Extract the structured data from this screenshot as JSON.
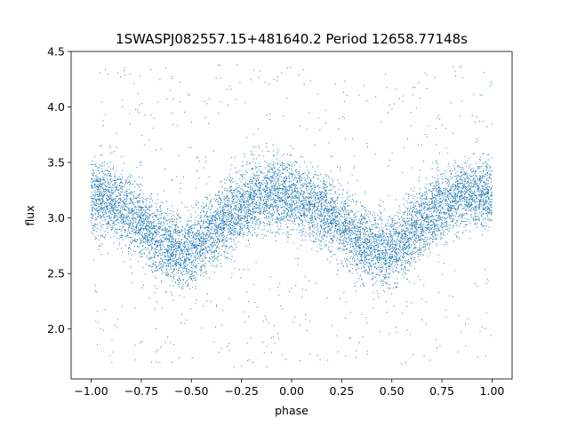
{
  "chart_data": {
    "type": "scatter",
    "title": "1SWASPJ082557.15+481640.2 Period 12658.77148s",
    "xlabel": "phase",
    "ylabel": "flux",
    "xlim": [
      -1.1,
      1.1
    ],
    "ylim": [
      1.55,
      4.5
    ],
    "xticks": [
      -1.0,
      -0.75,
      -0.5,
      -0.25,
      0.0,
      0.25,
      0.5,
      0.75,
      1.0
    ],
    "xtick_labels": [
      "−1.00",
      "−0.75",
      "−0.50",
      "−0.25",
      "0.00",
      "0.25",
      "0.50",
      "0.75",
      "1.00"
    ],
    "yticks": [
      2.0,
      2.5,
      3.0,
      3.5,
      4.0,
      4.5
    ],
    "ytick_labels": [
      "2.0",
      "2.5",
      "3.0",
      "3.5",
      "4.0",
      "4.5"
    ],
    "grid": false,
    "legend": "none",
    "marker_color": "#1f77b4",
    "series": [
      {
        "x_range": [
          -1.0,
          1.0
        ],
        "trend": {
          "phase": [
            -1.0,
            -0.9,
            -0.8,
            -0.7,
            -0.6,
            -0.55,
            -0.5,
            -0.4,
            -0.3,
            -0.2,
            -0.1,
            0.0,
            0.1,
            0.2,
            0.3,
            0.4,
            0.45,
            0.5,
            0.6,
            0.7,
            0.8,
            0.9,
            1.0
          ],
          "flux": [
            3.2,
            3.15,
            3.05,
            2.85,
            2.72,
            2.7,
            2.72,
            2.88,
            3.05,
            3.18,
            3.23,
            3.2,
            3.12,
            3.02,
            2.85,
            2.72,
            2.7,
            2.72,
            2.87,
            3.05,
            3.18,
            3.23,
            3.2
          ]
        },
        "scatter_half_width": 0.35,
        "outlier_range": [
          1.65,
          4.38
        ]
      }
    ]
  }
}
